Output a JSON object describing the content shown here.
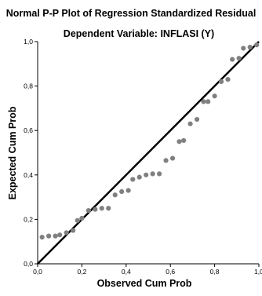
{
  "chart_data": {
    "type": "scatter",
    "title": "Normal P-P Plot of Regression Standardized Residual",
    "subtitle": "Dependent Variable: INFLASI (Y)",
    "xlabel": "Observed Cum Prob",
    "ylabel": "Expected Cum Prob",
    "xlim": [
      0,
      1
    ],
    "ylim": [
      0,
      1
    ],
    "x_ticks": [
      "0,0",
      "0,2",
      "0,4",
      "0,6",
      "0,8",
      "1,0"
    ],
    "y_ticks": [
      "0,0",
      "0,2",
      "0,4",
      "0,6",
      "0,8",
      "1,0"
    ],
    "grid": false,
    "reference_line": {
      "from": [
        0,
        0
      ],
      "to": [
        1,
        1
      ]
    },
    "colors": {
      "points": "#808080",
      "reference_line": "#000000",
      "axes": "#000000"
    },
    "points": [
      {
        "x": 0.02,
        "y": 0.12
      },
      {
        "x": 0.05,
        "y": 0.125
      },
      {
        "x": 0.08,
        "y": 0.125
      },
      {
        "x": 0.1,
        "y": 0.13
      },
      {
        "x": 0.13,
        "y": 0.14
      },
      {
        "x": 0.16,
        "y": 0.15
      },
      {
        "x": 0.18,
        "y": 0.195
      },
      {
        "x": 0.2,
        "y": 0.205
      },
      {
        "x": 0.23,
        "y": 0.24
      },
      {
        "x": 0.26,
        "y": 0.245
      },
      {
        "x": 0.29,
        "y": 0.25
      },
      {
        "x": 0.32,
        "y": 0.25
      },
      {
        "x": 0.35,
        "y": 0.31
      },
      {
        "x": 0.38,
        "y": 0.325
      },
      {
        "x": 0.41,
        "y": 0.33
      },
      {
        "x": 0.43,
        "y": 0.38
      },
      {
        "x": 0.46,
        "y": 0.39
      },
      {
        "x": 0.49,
        "y": 0.4
      },
      {
        "x": 0.52,
        "y": 0.405
      },
      {
        "x": 0.55,
        "y": 0.405
      },
      {
        "x": 0.58,
        "y": 0.465
      },
      {
        "x": 0.61,
        "y": 0.475
      },
      {
        "x": 0.64,
        "y": 0.55
      },
      {
        "x": 0.66,
        "y": 0.555
      },
      {
        "x": 0.69,
        "y": 0.63
      },
      {
        "x": 0.72,
        "y": 0.65
      },
      {
        "x": 0.75,
        "y": 0.73
      },
      {
        "x": 0.77,
        "y": 0.73
      },
      {
        "x": 0.8,
        "y": 0.755
      },
      {
        "x": 0.83,
        "y": 0.82
      },
      {
        "x": 0.86,
        "y": 0.83
      },
      {
        "x": 0.88,
        "y": 0.92
      },
      {
        "x": 0.91,
        "y": 0.925
      },
      {
        "x": 0.93,
        "y": 0.97
      },
      {
        "x": 0.96,
        "y": 0.975
      },
      {
        "x": 0.99,
        "y": 0.985
      }
    ]
  }
}
